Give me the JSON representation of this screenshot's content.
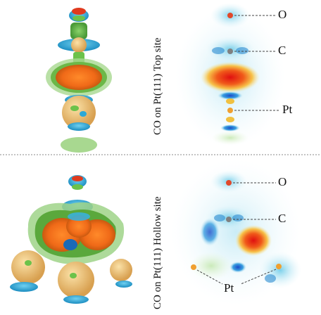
{
  "panels": {
    "top": {
      "label": "CO on Pt(111) Top site",
      "atoms": {
        "o": "O",
        "c": "C",
        "pt": "Pt"
      }
    },
    "hollow": {
      "label": "CO on Pt(111) Hollow site",
      "atoms": {
        "o": "O",
        "c": "C",
        "pt": "Pt"
      }
    }
  },
  "colors": {
    "red": "#e23a1e",
    "orange": "#f07a1a",
    "green": "#6cc24a",
    "cyan": "#2aa8d8",
    "gold": "#e8b060",
    "atom_o": "#e2482a",
    "atom_c": "#808080",
    "atom_pt": "#f0a030"
  }
}
